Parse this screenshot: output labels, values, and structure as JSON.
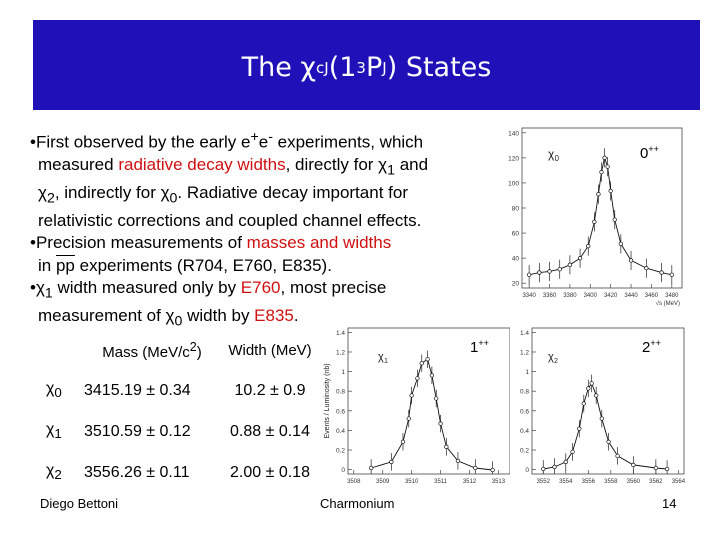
{
  "slide": {
    "title_pre": "The χ",
    "title_sub": "cJ",
    "title_mid": "(1",
    "title_sup": "3",
    "title_p": "P",
    "title_sub2": "J",
    "title_post": ") States",
    "bullets": {
      "b1_a": "•First observed by the early e",
      "b1_plus": "+",
      "b1_e": "e",
      "b1_minus": "-",
      "b1_b": " experiments, which",
      "b1_c": "measured ",
      "b1_red": "radiative decay widths",
      "b1_d": ", directly for χ",
      "b1_d_sub": "1",
      "b1_e2": " and",
      "b1_f": "χ",
      "b1_f_sub": "2",
      "b1_g": ", indirectly for χ",
      "b1_g_sub": "0",
      "b1_h": ". Radiative decay important for",
      "b1_i": "relativistic corrections and coupled channel effects.",
      "b2_a": "•Precision measurements of ",
      "b2_red": "masses and widths",
      "b2_b": "in ",
      "b2_pp": "pp",
      "b2_c": " experiments (R704, E760, E835).",
      "b3_a": "•χ",
      "b3_a_sub": "1",
      "b3_b": " width  measured only by ",
      "b3_red1": "E760",
      "b3_c": ", most precise",
      "b3_d": "measurement of χ",
      "b3_d_sub": "0",
      "b3_e": " width by ",
      "b3_red2": "E835",
      "b3_f": "."
    },
    "table": {
      "header_mass_pre": "Mass (MeV/c",
      "header_mass_sup": "2",
      "header_mass_post": ")",
      "header_width": "Width (MeV)",
      "rows": [
        {
          "state": "χ",
          "sub": "0",
          "mass": "3415.19 ± 0.34",
          "width": "10.2 ± 0.9"
        },
        {
          "state": "χ",
          "sub": "1",
          "mass": "3510.59 ± 0.12",
          "width": "0.88 ± 0.14"
        },
        {
          "state": "χ",
          "sub": "2",
          "mass": "3556.26 ± 0.11",
          "width": "2.00 ± 0.18"
        }
      ]
    },
    "footer": {
      "author": "Diego Bettoni",
      "center": "Charmonium",
      "page": "14"
    }
  },
  "chart_data": [
    {
      "type": "scatter",
      "panel": "chi0",
      "state_label": "χ",
      "state_sub": "0",
      "jpc": "0++",
      "y_ticks": [
        "140",
        "120",
        "100",
        "80",
        "60",
        "40",
        "20"
      ],
      "x_ticks": [
        "3340",
        "3360",
        "3380",
        "3400",
        "3420",
        "3440",
        "3460",
        "3480"
      ],
      "x_unit": "√s (MeV)",
      "xlim": [
        3333,
        3490
      ],
      "ylim": [
        0,
        145
      ],
      "points": [
        [
          3340,
          12
        ],
        [
          3350,
          14
        ],
        [
          3360,
          15
        ],
        [
          3370,
          17
        ],
        [
          3380,
          21
        ],
        [
          3390,
          27
        ],
        [
          3398,
          38
        ],
        [
          3404,
          60
        ],
        [
          3408,
          85
        ],
        [
          3411,
          105
        ],
        [
          3414,
          118
        ],
        [
          3417,
          110
        ],
        [
          3420,
          88
        ],
        [
          3424,
          62
        ],
        [
          3430,
          40
        ],
        [
          3440,
          25
        ],
        [
          3455,
          18
        ],
        [
          3470,
          14
        ],
        [
          3480,
          12
        ]
      ]
    },
    {
      "type": "scatter",
      "panel": "chi1",
      "state_label": "χ",
      "state_sub": "1",
      "jpc": "1++",
      "ylabel": "Events / Luminosity (nb)",
      "y_ticks": [
        "1.4",
        "1.2",
        "1",
        "0.8",
        "0.6",
        "0.4",
        "0.2",
        "0"
      ],
      "x_ticks": [
        "3508",
        "3509",
        "3510",
        "3511",
        "3512",
        "3513"
      ],
      "xlim": [
        3507.8,
        3513.4
      ],
      "ylim": [
        0,
        1.45
      ],
      "points": [
        [
          3508.6,
          0.06
        ],
        [
          3509.3,
          0.12
        ],
        [
          3509.7,
          0.32
        ],
        [
          3509.9,
          0.55
        ],
        [
          3510.0,
          0.78
        ],
        [
          3510.2,
          0.95
        ],
        [
          3510.35,
          1.1
        ],
        [
          3510.55,
          1.14
        ],
        [
          3510.7,
          0.98
        ],
        [
          3510.85,
          0.75
        ],
        [
          3511.0,
          0.5
        ],
        [
          3511.2,
          0.27
        ],
        [
          3511.6,
          0.13
        ],
        [
          3512.2,
          0.06
        ],
        [
          3512.8,
          0.04
        ]
      ]
    },
    {
      "type": "scatter",
      "panel": "chi2",
      "state_label": "χ",
      "state_sub": "2",
      "jpc": "2++",
      "y_ticks": [
        "1.4",
        "1.2",
        "1",
        "0.8",
        "0.6",
        "0.4",
        "0.2",
        "0"
      ],
      "x_ticks": [
        "3552",
        "3554",
        "3556",
        "3558",
        "3560",
        "3562",
        "3564"
      ],
      "xlim": [
        3551,
        3564.5
      ],
      "ylim": [
        0,
        1.45
      ],
      "points": [
        [
          3552.0,
          0.05
        ],
        [
          3553.0,
          0.07
        ],
        [
          3554.0,
          0.12
        ],
        [
          3554.6,
          0.22
        ],
        [
          3555.2,
          0.45
        ],
        [
          3555.6,
          0.7
        ],
        [
          3556.0,
          0.85
        ],
        [
          3556.3,
          0.9
        ],
        [
          3556.7,
          0.78
        ],
        [
          3557.2,
          0.55
        ],
        [
          3557.8,
          0.32
        ],
        [
          3558.6,
          0.18
        ],
        [
          3560.0,
          0.09
        ],
        [
          3562.0,
          0.06
        ],
        [
          3563.0,
          0.05
        ]
      ]
    }
  ]
}
